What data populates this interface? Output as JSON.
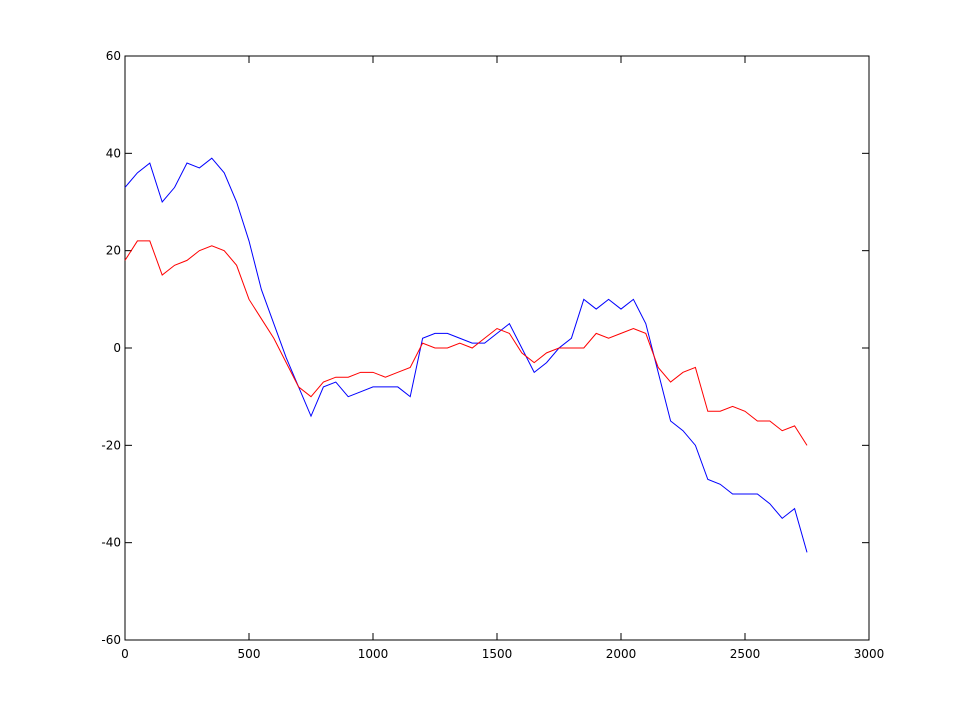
{
  "chart_data": {
    "type": "line",
    "x": [
      0,
      50,
      100,
      150,
      200,
      250,
      300,
      350,
      400,
      450,
      500,
      550,
      600,
      650,
      700,
      750,
      800,
      850,
      900,
      950,
      1000,
      1050,
      1100,
      1150,
      1200,
      1250,
      1300,
      1350,
      1400,
      1450,
      1500,
      1550,
      1600,
      1650,
      1700,
      1750,
      1800,
      1850,
      1900,
      1950,
      2000,
      2050,
      2100,
      2150,
      2200,
      2250,
      2300,
      2350,
      2400,
      2450,
      2500,
      2550,
      2600,
      2650,
      2700,
      2750
    ],
    "series": [
      {
        "color": "#0000ff",
        "values": [
          33,
          36,
          38,
          30,
          33,
          38,
          37,
          39,
          36,
          30,
          22,
          12,
          5,
          -2,
          -8,
          -14,
          -8,
          -7,
          -10,
          -9,
          -8,
          -8,
          -8,
          -10,
          2,
          3,
          3,
          2,
          1,
          1,
          3,
          5,
          0,
          -5,
          -3,
          0,
          2,
          10,
          8,
          10,
          8,
          10,
          5,
          -5,
          -15,
          -17,
          -20,
          -27,
          -28,
          -30,
          -30,
          -30,
          -32,
          -35,
          -33,
          -42
        ]
      },
      {
        "color": "#ff0000",
        "values": [
          18,
          22,
          22,
          15,
          17,
          18,
          20,
          21,
          20,
          17,
          10,
          6,
          2,
          -3,
          -8,
          -10,
          -7,
          -6,
          -6,
          -5,
          -5,
          -6,
          -5,
          -4,
          1,
          0,
          0,
          1,
          0,
          2,
          4,
          3,
          -1,
          -3,
          -1,
          0,
          0,
          0,
          3,
          2,
          3,
          4,
          3,
          -4,
          -7,
          -5,
          -4,
          -13,
          -13,
          -12,
          -13,
          -15,
          -15,
          -17,
          -16,
          -20
        ]
      }
    ],
    "xlim": [
      0,
      3000
    ],
    "xticks": [
      0,
      500,
      1000,
      1500,
      2000,
      2500,
      3000
    ],
    "ylim": [
      -60,
      60
    ],
    "yticks": [
      -60,
      -40,
      -20,
      0,
      20,
      40,
      60
    ]
  }
}
